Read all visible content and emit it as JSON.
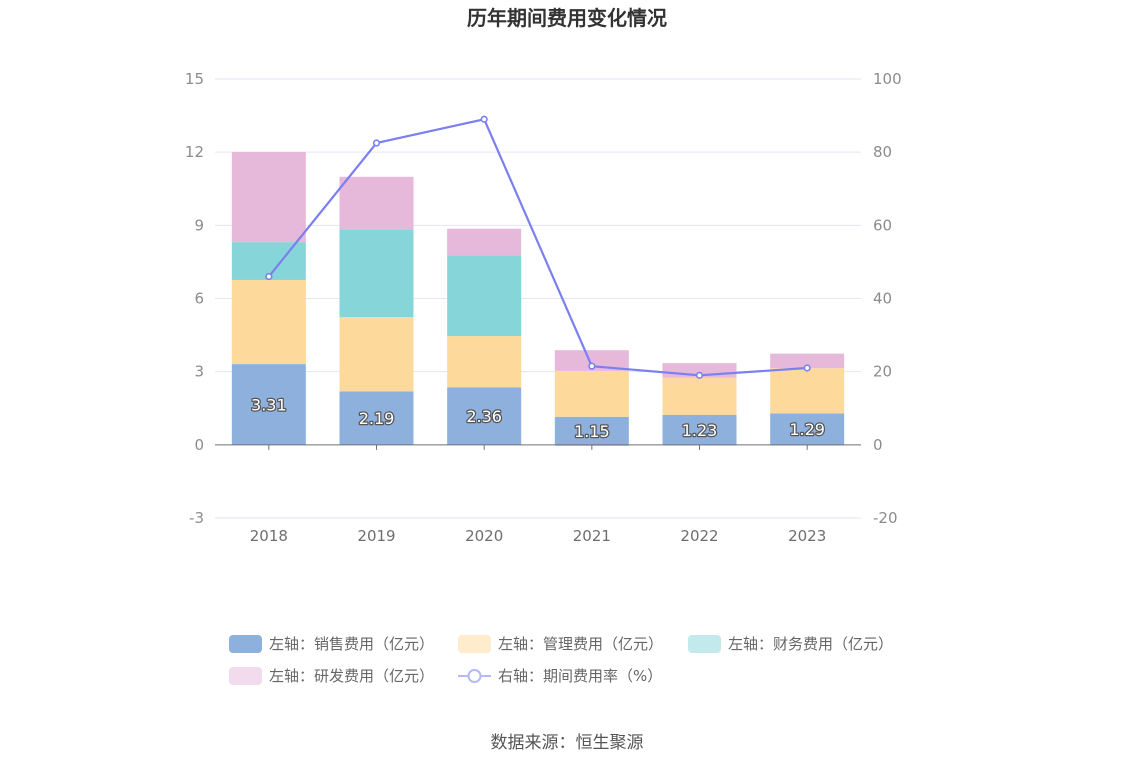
{
  "chart_data": {
    "type": "bar",
    "title": "历年期间费用变化情况",
    "categories": [
      "2018",
      "2019",
      "2020",
      "2021",
      "2022",
      "2023"
    ],
    "left_axis": {
      "ylim": [
        -3,
        15
      ],
      "ticks": [
        "-3",
        "0",
        "3",
        "6",
        "9",
        "12",
        "15"
      ]
    },
    "right_axis": {
      "ylim": [
        -20,
        100
      ],
      "ticks": [
        "-20",
        "0",
        "20",
        "40",
        "60",
        "80",
        "100"
      ]
    },
    "series": [
      {
        "name": "左轴：销售费用（亿元）",
        "type": "bar",
        "axis": "left",
        "color": "#8eb0dc",
        "values": [
          3.31,
          2.19,
          2.36,
          1.15,
          1.23,
          1.29
        ],
        "labels": [
          "3.31",
          "2.19",
          "2.36",
          "1.15",
          "1.23",
          "1.29"
        ]
      },
      {
        "name": "左轴：管理费用（亿元）",
        "type": "bar",
        "axis": "left",
        "color": "#fdd99b",
        "values": [
          3.45,
          3.05,
          2.1,
          1.88,
          1.52,
          1.85
        ]
      },
      {
        "name": "左轴：财务费用（亿元）",
        "type": "bar",
        "axis": "left",
        "color": "#86d5d9",
        "values": [
          1.55,
          3.6,
          3.3,
          -0.04,
          -0.02,
          -0.01
        ]
      },
      {
        "name": "左轴：研发费用（亿元）",
        "type": "bar",
        "axis": "left",
        "color": "#e6b8d9",
        "values": [
          3.7,
          2.15,
          1.1,
          0.85,
          0.6,
          0.6
        ]
      },
      {
        "name": "右轴：期间费用率（%）",
        "type": "line",
        "axis": "right",
        "color": "#7b7ff0",
        "values": [
          46,
          82.5,
          89,
          21.5,
          19,
          21
        ]
      }
    ],
    "legend_position": "bottom",
    "grid": true
  },
  "source": "数据来源：恒生聚源"
}
